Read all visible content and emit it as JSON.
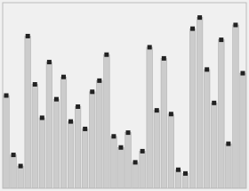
{
  "chart_data": {
    "type": "bar",
    "categories": [
      null,
      null,
      null,
      null,
      null,
      null,
      null,
      null,
      null,
      null,
      null,
      null,
      null,
      null,
      null,
      null,
      null,
      null,
      null,
      null,
      null,
      null,
      null,
      null,
      null,
      null,
      null,
      null,
      null,
      null,
      null,
      null,
      null,
      null
    ],
    "values": [
      0.5,
      0.18,
      0.12,
      0.82,
      0.56,
      0.38,
      0.68,
      0.48,
      0.6,
      0.36,
      0.44,
      0.32,
      0.52,
      0.58,
      0.72,
      0.28,
      0.22,
      0.3,
      0.14,
      0.2,
      0.76,
      0.42,
      0.7,
      0.4,
      0.1,
      0.08,
      0.86,
      0.92,
      0.64,
      0.46,
      0.8,
      0.24,
      0.88,
      0.62
    ],
    "color": "#cccccc",
    "marker": "square",
    "ylim": [
      0,
      1.0
    ],
    "tick_labels": false,
    "grid": false
  }
}
